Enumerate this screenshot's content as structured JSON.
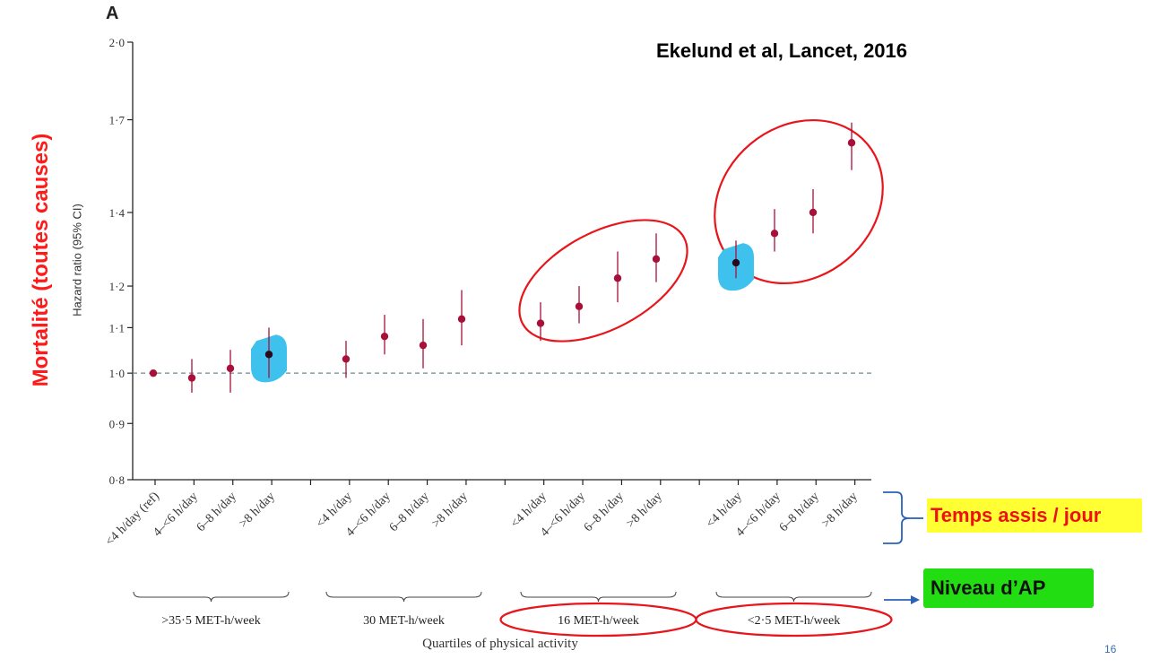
{
  "panel_label": "A",
  "citation": "Ekelund et al, Lancet, 2016",
  "annotations": {
    "mortalite": "Mortalité (toutes causes)",
    "temps_assis": "Temps assis / jour",
    "niveau_ap": "Niveau d’AP"
  },
  "page_number": "16",
  "colors": {
    "point": "#a8103a",
    "highlight": "#3fc1ee",
    "circle": "#e8151b",
    "reference": "#6a8a96",
    "annotation_red": "#ff1a1a",
    "yellow": "#ffff33",
    "green": "#22dd11",
    "bracket_blue": "#2a62b8"
  },
  "chart_data": {
    "type": "scatter",
    "ylabel": "Hazard ratio (95% CI)",
    "xlabel": "Quartiles of physical activity",
    "yscale": "log",
    "ylim": [
      0.8,
      2.0
    ],
    "yticks": [
      0.8,
      0.9,
      1.0,
      1.1,
      1.2,
      1.4,
      1.7,
      2.0
    ],
    "ytick_labels": [
      "0·8",
      "0·9",
      "1·0",
      "1·1",
      "1·2",
      "1·4",
      "1·7",
      "2·0"
    ],
    "reference_line": 1.0,
    "groups": [
      {
        "name": ">35·5 MET-h/week",
        "categories": [
          "<4 h/day (ref)",
          "4–<6 h/day",
          "6–8 h/day",
          ">8 h/day"
        ],
        "hr": [
          1.0,
          0.99,
          1.01,
          1.04
        ],
        "ci_low": [
          1.0,
          0.96,
          0.96,
          0.99
        ],
        "ci_high": [
          1.0,
          1.03,
          1.05,
          1.1
        ],
        "highlighted": [
          3
        ],
        "circled": false
      },
      {
        "name": "30 MET-h/week",
        "categories": [
          "<4 h/day",
          "4–<6 h/day",
          "6–8 h/day",
          ">8 h/day"
        ],
        "hr": [
          1.03,
          1.08,
          1.06,
          1.12
        ],
        "ci_low": [
          0.99,
          1.04,
          1.01,
          1.06
        ],
        "ci_high": [
          1.07,
          1.13,
          1.12,
          1.19
        ],
        "highlighted": [],
        "circled": false
      },
      {
        "name": "16 MET-h/week",
        "categories": [
          "<4 h/day",
          "4–<6 h/day",
          "6–8 h/day",
          ">8 h/day"
        ],
        "hr": [
          1.11,
          1.15,
          1.22,
          1.27
        ],
        "ci_low": [
          1.07,
          1.11,
          1.16,
          1.21
        ],
        "ci_high": [
          1.16,
          1.2,
          1.29,
          1.34
        ],
        "highlighted": [],
        "circled": true
      },
      {
        "name": "<2·5 MET-h/week",
        "categories": [
          "<4 h/day",
          "4–<6 h/day",
          "6–8 h/day",
          ">8 h/day"
        ],
        "hr": [
          1.26,
          1.34,
          1.4,
          1.62
        ],
        "ci_low": [
          1.22,
          1.29,
          1.34,
          1.53
        ],
        "ci_high": [
          1.32,
          1.41,
          1.47,
          1.69
        ],
        "highlighted": [
          0
        ],
        "circled": true
      }
    ]
  }
}
